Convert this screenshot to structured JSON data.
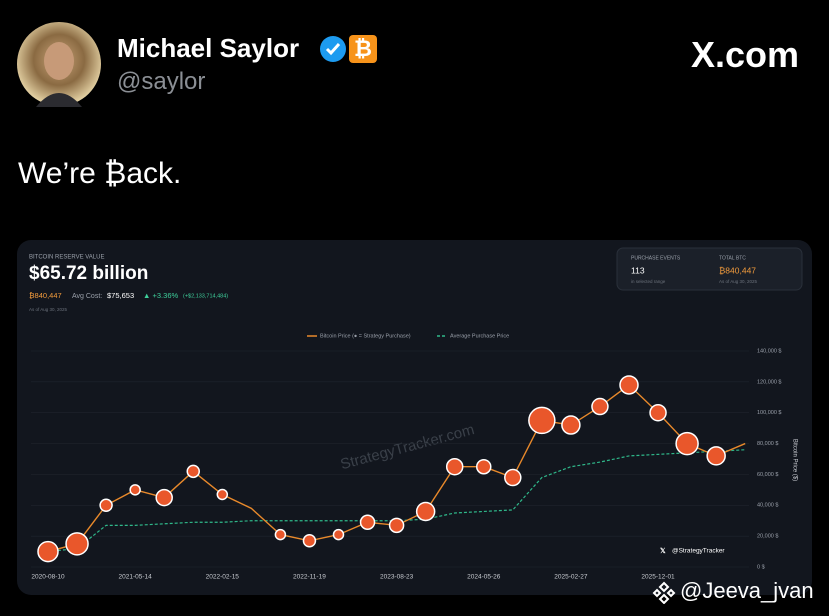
{
  "tweet": {
    "name": "Michael Saylor",
    "badge": "₿",
    "handle": "@saylor",
    "site": "X.com",
    "text": "We’re ₿ack.",
    "watermark": "@Jeeva_jvan"
  },
  "card": {
    "label": "BITCOIN RESERVE VALUE",
    "value": "$65.72 billion",
    "btc": "₿840,447",
    "avg_cost_label": "Avg Cost:",
    "avg_cost": "$75,653",
    "change": "▲ +3.36%",
    "change_amount": "(+$2,133,714,484)",
    "as_of": "As of Aug 30, 2025",
    "stats": [
      {
        "label": "PURCHASE EVENTS",
        "value": "113",
        "note": "in selected range"
      },
      {
        "label": "TOTAL BTC",
        "value": "₿840,447",
        "note": "As of Aug 30, 2025"
      }
    ],
    "watermark": "StrategyTracker.com",
    "credit": "@StrategyTracker"
  },
  "chart_data": {
    "type": "line",
    "ylabel": "Bitcoin Price ($)",
    "categories": [
      "2020-08-10",
      null,
      null,
      "2021-05-14",
      null,
      null,
      "2022-02-15",
      null,
      null,
      "2022-11-19",
      null,
      null,
      "2023-08-23",
      null,
      null,
      "2024-05-26",
      null,
      null,
      "2025-02-27",
      null,
      null,
      "2025-12-01",
      null,
      null,
      null
    ],
    "series": [
      {
        "name": "Bitcoin Price (● = Strategy Purchase)",
        "color": "#e8892b",
        "bubble_color": "#e9572b",
        "values": [
          10000,
          15000,
          40000,
          50000,
          45000,
          62000,
          47000,
          38000,
          21000,
          17000,
          21000,
          29000,
          27000,
          36000,
          65000,
          65000,
          58000,
          95000,
          92000,
          104000,
          118000,
          100000,
          80000,
          72000,
          80000
        ],
        "purchase_sizes": [
          10,
          11,
          6,
          5,
          8,
          6,
          5,
          null,
          5,
          6,
          5,
          7,
          7,
          9,
          8,
          7,
          8,
          13,
          9,
          8,
          9,
          8,
          11,
          9,
          null
        ]
      },
      {
        "name": "Average Purchase Price",
        "color": "#2fb88a",
        "values": [
          10000,
          12000,
          27000,
          27000,
          28000,
          29000,
          29000,
          30000,
          30000,
          30000,
          30000,
          30000,
          30000,
          31000,
          35000,
          36000,
          37000,
          58000,
          65000,
          68000,
          72000,
          73000,
          74000,
          75000,
          76000
        ]
      }
    ],
    "ylim": [
      0,
      140000
    ],
    "yticks": [
      {
        "value": 0,
        "label": "0 $"
      },
      {
        "value": 20000,
        "label": "20,000 $"
      },
      {
        "value": 40000,
        "label": "40,000 $"
      },
      {
        "value": 60000,
        "label": "60,000 $"
      },
      {
        "value": 80000,
        "label": "80,000 $"
      },
      {
        "value": 100000,
        "label": "100,000 $"
      },
      {
        "value": 120000,
        "label": "120,000 $"
      },
      {
        "value": 140000,
        "label": "140,000 $"
      }
    ]
  }
}
